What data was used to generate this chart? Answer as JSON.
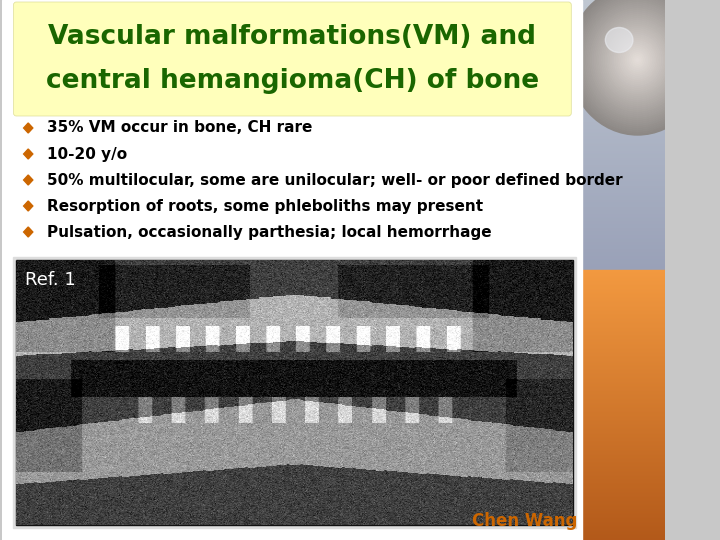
{
  "title_line1": "Vascular malformations(VM) and",
  "title_line2": "central hemangioma(CH) of bone",
  "title_color": "#1a6600",
  "title_bg_color": "#ffffbb",
  "bullet_points": [
    "35% VM occur in bone, CH rare",
    "10-20 y/o",
    "50% multilocular, some are unilocular; well- or poor defined border",
    "Resorption of roots, some phleboliths may present",
    "Pulsation, occasionally parthesia; local hemorrhage"
  ],
  "bullet_color": "#cc6600",
  "bullet_text_color": "#000000",
  "ref_text": "Ref. 1",
  "ref_text_color": "#ffffff",
  "credit_text": "Chen Wang",
  "credit_color": "#cc6600",
  "slide_bg": "#c8c8c8"
}
